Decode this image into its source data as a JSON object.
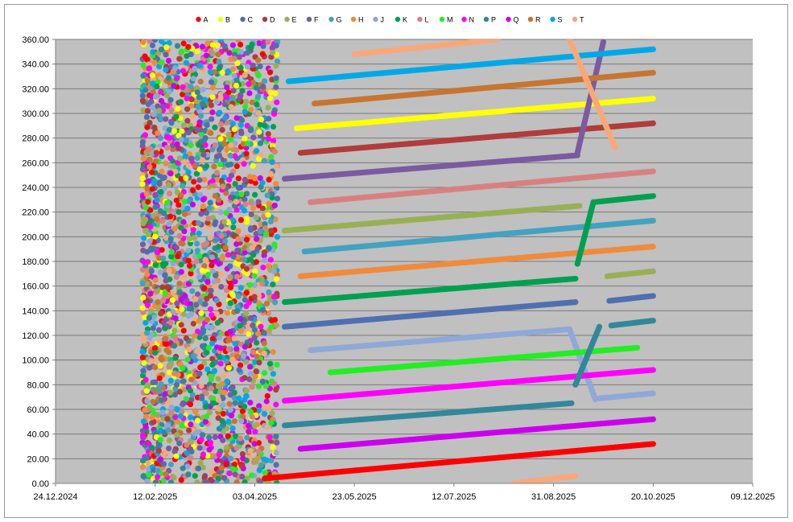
{
  "chart_data": {
    "type": "scatter",
    "title": "",
    "xlabel": "",
    "ylabel": "",
    "legend_position": "top",
    "grid": true,
    "plot_background": "#c0c0c0",
    "ylim": [
      0,
      360
    ],
    "y_ticks": [
      "0.00",
      "20.00",
      "40.00",
      "60.00",
      "80.00",
      "100.00",
      "120.00",
      "140.00",
      "160.00",
      "180.00",
      "200.00",
      "220.00",
      "240.00",
      "260.00",
      "280.00",
      "300.00",
      "320.00",
      "340.00",
      "360.00"
    ],
    "xlim": [
      "2024-12-24",
      "2025-12-09"
    ],
    "x_ticks": [
      "24.12.2024",
      "12.02.2025",
      "03.04.2025",
      "23.05.2025",
      "12.07.2025",
      "31.08.2025",
      "20.10.2025",
      "09.12.2025"
    ],
    "x_tick_dates": [
      "2024-12-24",
      "2025-02-12",
      "2025-04-03",
      "2025-05-23",
      "2025-07-12",
      "2025-08-31",
      "2025-10-20",
      "2025-12-09"
    ],
    "scatter_window": {
      "x": [
        "2025-02-06",
        "2025-04-15"
      ],
      "y": [
        0,
        360
      ]
    },
    "series": [
      {
        "name": "A",
        "color": "#ff0000",
        "segments": [
          [
            [
              "2025-04-08",
              4
            ],
            [
              "2025-10-20",
              32
            ]
          ]
        ]
      },
      {
        "name": "B",
        "color": "#ffff00",
        "segments": [
          [
            [
              "2025-04-24",
              288
            ],
            [
              "2025-10-20",
              312
            ]
          ]
        ]
      },
      {
        "name": "C",
        "color": "#4f6fb0",
        "segments": [
          [
            [
              "2025-04-18",
              127
            ],
            [
              "2025-09-11",
              147
            ]
          ],
          [
            [
              "2025-09-28",
              148
            ],
            [
              "2025-10-20",
              152
            ]
          ]
        ]
      },
      {
        "name": "D",
        "color": "#b03c3c",
        "segments": [
          [
            [
              "2025-04-26",
              268
            ],
            [
              "2025-10-20",
              292
            ]
          ]
        ]
      },
      {
        "name": "E",
        "color": "#98b054",
        "segments": [
          [
            [
              "2025-04-18",
              205
            ],
            [
              "2025-09-13",
              225
            ]
          ],
          [
            [
              "2025-09-27",
              168
            ],
            [
              "2025-10-20",
              172
            ]
          ]
        ]
      },
      {
        "name": "F",
        "color": "#7a5aa0",
        "segments": [
          [
            [
              "2025-04-18",
              247
            ],
            [
              "2025-09-12",
              266
            ]
          ],
          [
            [
              "2025-09-12",
              268
            ],
            [
              "2025-09-25",
              358
            ]
          ]
        ]
      },
      {
        "name": "G",
        "color": "#42a2bf",
        "segments": [
          [
            [
              "2025-04-28",
              188
            ],
            [
              "2025-10-20",
              213
            ]
          ]
        ]
      },
      {
        "name": "H",
        "color": "#ef8b3c",
        "segments": [
          [
            [
              "2025-04-26",
              168
            ],
            [
              "2025-10-20",
              192
            ]
          ]
        ]
      },
      {
        "name": "J",
        "color": "#8ea8d8",
        "segments": [
          [
            [
              "2025-05-01",
              108
            ],
            [
              "2025-09-08",
              125
            ]
          ],
          [
            [
              "2025-09-08",
              125
            ],
            [
              "2025-09-21",
              68
            ]
          ],
          [
            [
              "2025-09-23",
              69
            ],
            [
              "2025-10-20",
              73
            ]
          ]
        ]
      },
      {
        "name": "K",
        "color": "#00a050",
        "segments": [
          [
            [
              "2025-04-18",
              147
            ],
            [
              "2025-09-11",
              166
            ]
          ],
          [
            [
              "2025-09-12",
              178
            ],
            [
              "2025-09-20",
              228
            ]
          ],
          [
            [
              "2025-09-20",
              228
            ],
            [
              "2025-10-20",
              233
            ]
          ]
        ]
      },
      {
        "name": "L",
        "color": "#d88080",
        "segments": [
          [
            [
              "2025-05-01",
              228
            ],
            [
              "2025-10-20",
              253
            ]
          ]
        ]
      },
      {
        "name": "M",
        "color": "#22ee22",
        "segments": [
          [
            [
              "2025-05-11",
              90
            ],
            [
              "2025-10-12",
              110
            ]
          ]
        ]
      },
      {
        "name": "N",
        "color": "#ff00ff",
        "segments": [
          [
            [
              "2025-04-18",
              67
            ],
            [
              "2025-10-20",
              92
            ]
          ]
        ]
      },
      {
        "name": "P",
        "color": "#318898",
        "segments": [
          [
            [
              "2025-04-18",
              47
            ],
            [
              "2025-09-09",
              65
            ]
          ],
          [
            [
              "2025-09-11",
              80
            ],
            [
              "2025-09-23",
              127
            ]
          ],
          [
            [
              "2025-09-29",
              128
            ],
            [
              "2025-10-20",
              132
            ]
          ]
        ]
      },
      {
        "name": "Q",
        "color": "#cc00ee",
        "segments": [
          [
            [
              "2025-04-26",
              28
            ],
            [
              "2025-10-20",
              52
            ]
          ]
        ]
      },
      {
        "name": "R",
        "color": "#c77530",
        "segments": [
          [
            [
              "2025-05-03",
              308
            ],
            [
              "2025-10-20",
              333
            ]
          ]
        ]
      },
      {
        "name": "S",
        "color": "#00a8e8",
        "segments": [
          [
            [
              "2025-04-20",
              326
            ],
            [
              "2025-10-20",
              352
            ]
          ]
        ]
      },
      {
        "name": "T",
        "color": "#f8a878",
        "segments": [
          [
            [
              "2025-05-23",
              348
            ],
            [
              "2025-08-03",
              360
            ]
          ],
          [
            [
              "2025-09-08",
              360
            ],
            [
              "2025-10-01",
              272
            ]
          ],
          [
            [
              "2025-08-11",
              0
            ],
            [
              "2025-09-11",
              6
            ]
          ]
        ]
      }
    ]
  }
}
